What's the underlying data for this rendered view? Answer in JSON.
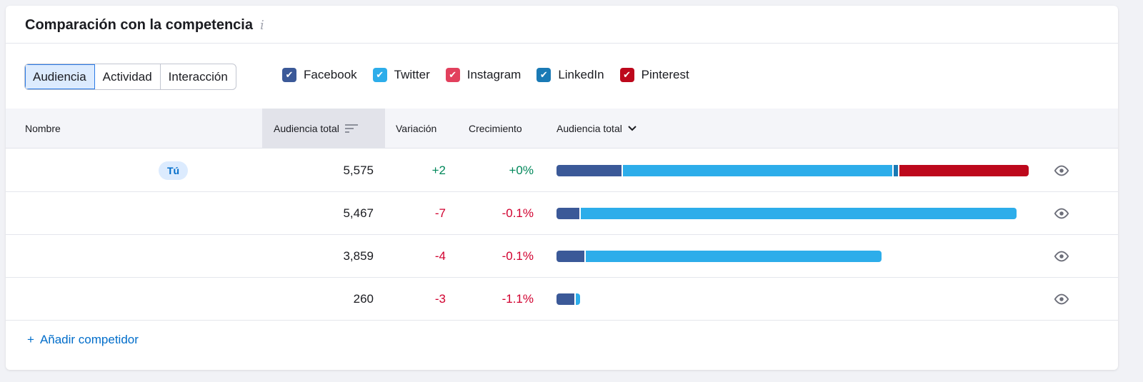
{
  "title": "Comparación con la competencia",
  "info_icon": "info-icon",
  "tabs": [
    {
      "label": "Audiencia",
      "active": true
    },
    {
      "label": "Actividad"
    },
    {
      "label": "Interacción"
    }
  ],
  "networks": [
    {
      "label": "Facebook",
      "color": "#3b5998",
      "checked": true
    },
    {
      "label": "Twitter",
      "color": "#2dadea",
      "checked": true
    },
    {
      "label": "Instagram",
      "color": "#e2405d",
      "checked": true
    },
    {
      "label": "LinkedIn",
      "color": "#1a7ab5",
      "checked": true
    },
    {
      "label": "Pinterest",
      "color": "#bd081c",
      "checked": true
    }
  ],
  "columns": {
    "name": "Nombre",
    "audience": "Audiencia total",
    "variation": "Variación",
    "growth": "Crecimiento",
    "audience_chart": "Audiencia total"
  },
  "rows": [
    {
      "badge": "Tú",
      "audience": "5,575",
      "variation": "+2",
      "growth": "+0%",
      "trend": "up",
      "segments": {
        "Facebook": 775,
        "Twitter": 3210,
        "LinkedIn": 50,
        "Pinterest": 1540
      }
    },
    {
      "audience": "5,467",
      "variation": "-7",
      "growth": "-0.1%",
      "trend": "down",
      "segments": {
        "Facebook": 272,
        "Twitter": 5195
      }
    },
    {
      "audience": "3,859",
      "variation": "-4",
      "growth": "-0.1%",
      "trend": "down",
      "segments": {
        "Facebook": 330,
        "Twitter": 3529
      }
    },
    {
      "audience": "260",
      "variation": "-3",
      "growth": "-1.1%",
      "trend": "down",
      "segments": {
        "Facebook": 210,
        "Twitter": 50
      }
    }
  ],
  "bar_max": 5575,
  "add_competitor": "Añadir competidor"
}
